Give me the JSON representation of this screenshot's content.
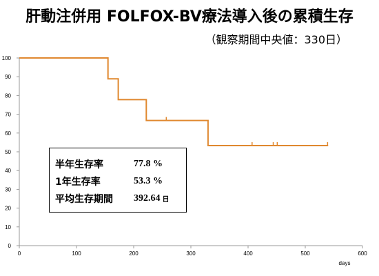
{
  "header": {
    "title": "肝動注併用 FOLFOX-BV療法導入後の累積生存",
    "subtitle": "（観察期間中央値：330日）"
  },
  "stats": [
    {
      "label": "半年生存率",
      "value": "77.8 %",
      "unit": ""
    },
    {
      "label": "1年生存率",
      "value": "53.3 %",
      "unit": ""
    },
    {
      "label": "平均生存期間",
      "value": "392.64",
      "unit": "日"
    }
  ],
  "chart_data": {
    "type": "line",
    "title": "肝動注併用 FOLFOX-BV療法導入後の累積生存",
    "xlabel": "days",
    "ylabel": "",
    "xlim": [
      0,
      600
    ],
    "ylim": [
      0,
      100
    ],
    "xticks": [
      "0",
      "100",
      "200",
      "300",
      "400",
      "500",
      "600"
    ],
    "yticks": [
      "0",
      "10",
      "20",
      "30",
      "40",
      "50",
      "60",
      "70",
      "80",
      "90",
      "100"
    ],
    "grid": false,
    "series": [
      {
        "color": "#e0882f",
        "step_points": [
          [
            0,
            100
          ],
          [
            155,
            100
          ],
          [
            155,
            88.9
          ],
          [
            173,
            88.9
          ],
          [
            173,
            77.8
          ],
          [
            222,
            77.8
          ],
          [
            222,
            66.7
          ],
          [
            330,
            66.7
          ],
          [
            330,
            53.3
          ],
          [
            540,
            53.3
          ]
        ],
        "censored": [
          [
            257,
            66.7
          ],
          [
            407,
            53.3
          ],
          [
            444,
            53.3
          ],
          [
            451,
            53.3
          ],
          [
            539,
            53.3
          ]
        ]
      }
    ]
  }
}
